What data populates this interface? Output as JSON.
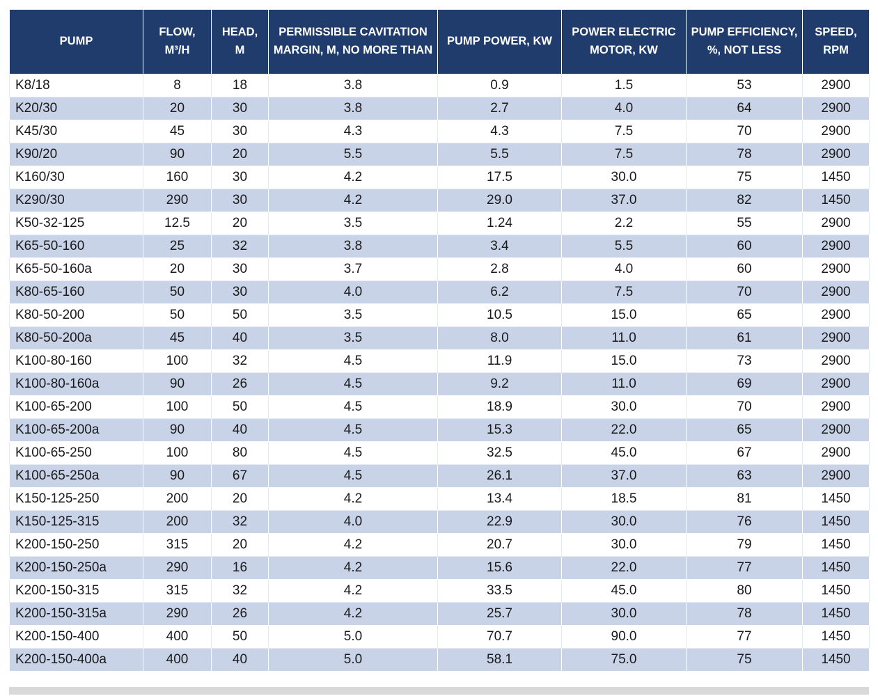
{
  "page": {
    "background": "#ffffff"
  },
  "table": {
    "header_bg": "#1f3c6d",
    "header_text_color": "#ffffff",
    "row_alt_bg": "#c9d3e8",
    "columns": [
      {
        "label": "PUMP"
      },
      {
        "label": "FLOW, M³/H"
      },
      {
        "label": "HEAD, M"
      },
      {
        "label": "PERMISSIBLE CAVITATION MARGIN, M, NO MORE THAN"
      },
      {
        "label": "PUMP POWER, KW"
      },
      {
        "label": "POWER ELECTRIC MOTOR, KW"
      },
      {
        "label": "PUMP EFFICIENCY, %, NOT LESS"
      },
      {
        "label": "SPEED, RPM"
      }
    ],
    "rows": [
      [
        "K8/18",
        "8",
        "18",
        "3.8",
        "0.9",
        "1.5",
        "53",
        "2900"
      ],
      [
        "K20/30",
        "20",
        "30",
        "3.8",
        "2.7",
        "4.0",
        "64",
        "2900"
      ],
      [
        "K45/30",
        "45",
        "30",
        "4.3",
        "4.3",
        "7.5",
        "70",
        "2900"
      ],
      [
        "K90/20",
        "90",
        "20",
        "5.5",
        "5.5",
        "7.5",
        "78",
        "2900"
      ],
      [
        "K160/30",
        "160",
        "30",
        "4.2",
        "17.5",
        "30.0",
        "75",
        "1450"
      ],
      [
        "K290/30",
        "290",
        "30",
        "4.2",
        "29.0",
        "37.0",
        "82",
        "1450"
      ],
      [
        "K50-32-125",
        "12.5",
        "20",
        "3.5",
        "1.24",
        "2.2",
        "55",
        "2900"
      ],
      [
        "K65-50-160",
        "25",
        "32",
        "3.8",
        "3.4",
        "5.5",
        "60",
        "2900"
      ],
      [
        "K65-50-160a",
        "20",
        "30",
        "3.7",
        "2.8",
        "4.0",
        "60",
        "2900"
      ],
      [
        "K80-65-160",
        "50",
        "30",
        "4.0",
        "6.2",
        "7.5",
        "70",
        "2900"
      ],
      [
        "K80-50-200",
        "50",
        "50",
        "3.5",
        "10.5",
        "15.0",
        "65",
        "2900"
      ],
      [
        "K80-50-200a",
        "45",
        "40",
        "3.5",
        "8.0",
        "11.0",
        "61",
        "2900"
      ],
      [
        "K100-80-160",
        "100",
        "32",
        "4.5",
        "11.9",
        "15.0",
        "73",
        "2900"
      ],
      [
        "K100-80-160a",
        "90",
        "26",
        "4.5",
        "9.2",
        "11.0",
        "69",
        "2900"
      ],
      [
        "K100-65-200",
        "100",
        "50",
        "4.5",
        "18.9",
        "30.0",
        "70",
        "2900"
      ],
      [
        "K100-65-200a",
        "90",
        "40",
        "4.5",
        "15.3",
        "22.0",
        "65",
        "2900"
      ],
      [
        "K100-65-250",
        "100",
        "80",
        "4.5",
        "32.5",
        "45.0",
        "67",
        "2900"
      ],
      [
        "K100-65-250a",
        "90",
        "67",
        "4.5",
        "26.1",
        "37.0",
        "63",
        "2900"
      ],
      [
        "K150-125-250",
        "200",
        "20",
        "4.2",
        "13.4",
        "18.5",
        "81",
        "1450"
      ],
      [
        "K150-125-315",
        "200",
        "32",
        "4.0",
        "22.9",
        "30.0",
        "76",
        "1450"
      ],
      [
        "K200-150-250",
        "315",
        "20",
        "4.2",
        "20.7",
        "30.0",
        "79",
        "1450"
      ],
      [
        "K200-150-250a",
        "290",
        "16",
        "4.2",
        "15.6",
        "22.0",
        "77",
        "1450"
      ],
      [
        "K200-150-315",
        "315",
        "32",
        "4.2",
        "33.5",
        "45.0",
        "80",
        "1450"
      ],
      [
        "K200-150-315a",
        "290",
        "26",
        "4.2",
        "25.7",
        "30.0",
        "78",
        "1450"
      ],
      [
        "K200-150-400",
        "400",
        "50",
        "5.0",
        "70.7",
        "90.0",
        "77",
        "1450"
      ],
      [
        "K200-150-400a",
        "400",
        "40",
        "5.0",
        "58.1",
        "75.0",
        "75",
        "1450"
      ]
    ]
  }
}
